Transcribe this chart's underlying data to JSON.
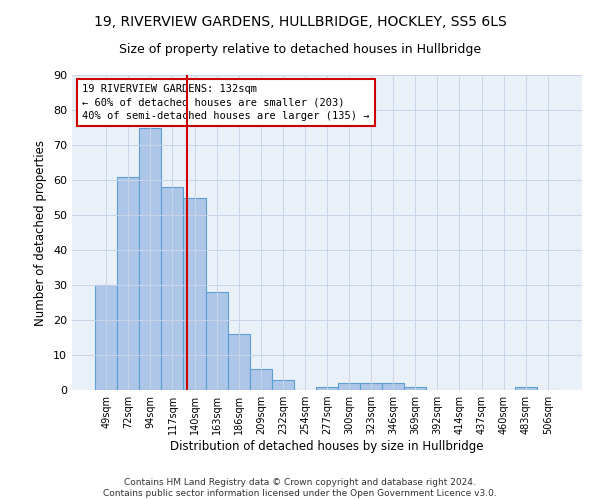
{
  "title": "19, RIVERVIEW GARDENS, HULLBRIDGE, HOCKLEY, SS5 6LS",
  "subtitle": "Size of property relative to detached houses in Hullbridge",
  "xlabel": "Distribution of detached houses by size in Hullbridge",
  "ylabel": "Number of detached properties",
  "categories": [
    "49sqm",
    "72sqm",
    "94sqm",
    "117sqm",
    "140sqm",
    "163sqm",
    "186sqm",
    "209sqm",
    "232sqm",
    "254sqm",
    "277sqm",
    "300sqm",
    "323sqm",
    "346sqm",
    "369sqm",
    "392sqm",
    "414sqm",
    "437sqm",
    "460sqm",
    "483sqm",
    "506sqm"
  ],
  "values": [
    30,
    61,
    75,
    58,
    55,
    28,
    16,
    6,
    3,
    0,
    1,
    2,
    2,
    2,
    1,
    0,
    0,
    0,
    0,
    1,
    0
  ],
  "bar_color": "#aec6e8",
  "bar_edge_color": "#5a9fd4",
  "annotation_text": "19 RIVERVIEW GARDENS: 132sqm\n← 60% of detached houses are smaller (203)\n40% of semi-detached houses are larger (135) →",
  "annotation_box_color": "white",
  "annotation_box_edge_color": "#cc0000",
  "footer": "Contains HM Land Registry data © Crown copyright and database right 2024.\nContains public sector information licensed under the Open Government Licence v3.0.",
  "ylim": [
    0,
    90
  ],
  "yticks": [
    0,
    10,
    20,
    30,
    40,
    50,
    60,
    70,
    80,
    90
  ],
  "title_fontsize": 10,
  "subtitle_fontsize": 9,
  "bar_width": 1.0
}
